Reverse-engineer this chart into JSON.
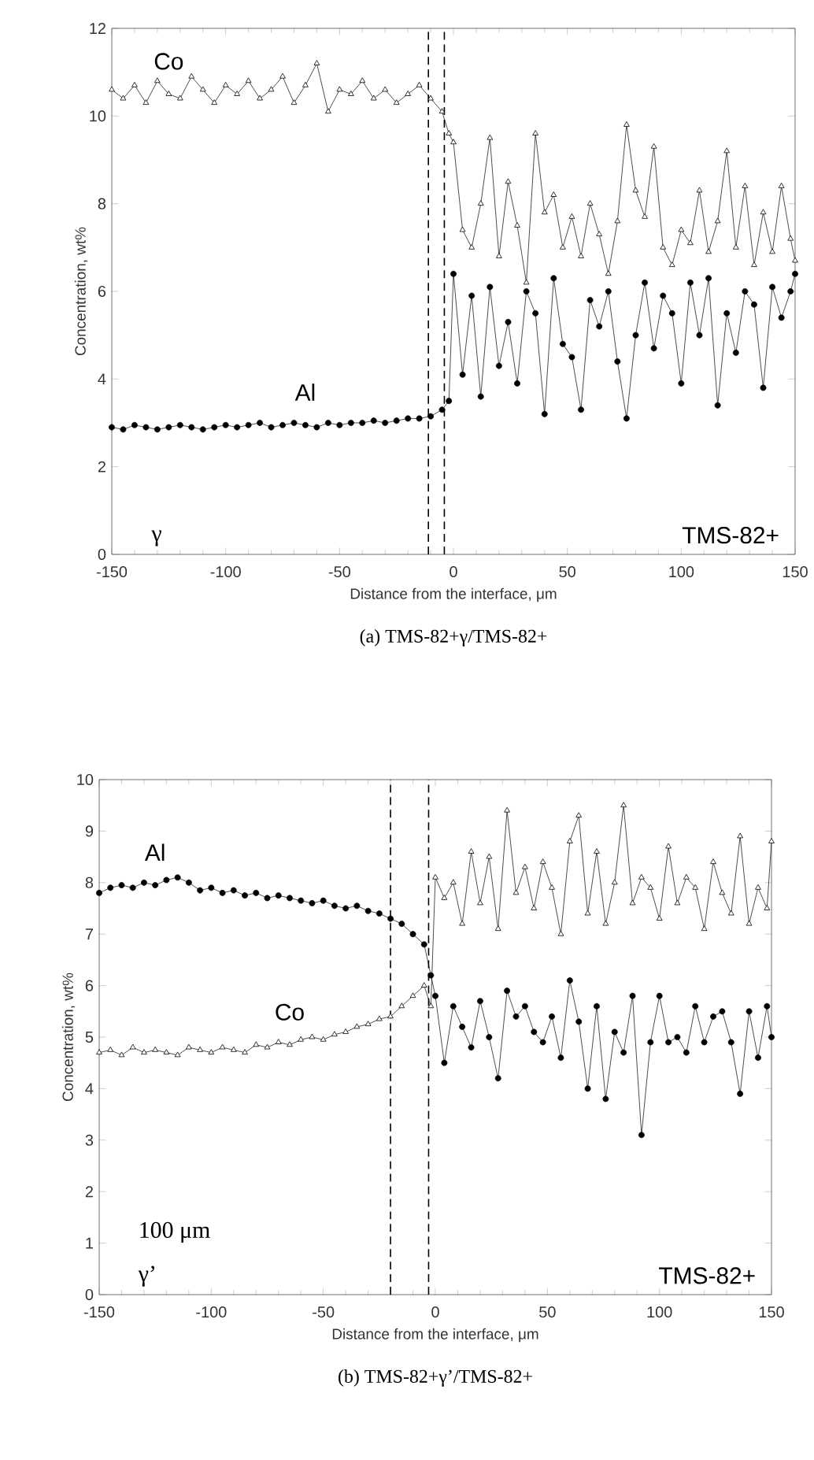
{
  "chart_data": [
    {
      "type": "line",
      "title": "(a) TMS-82+γ/TMS-82+",
      "xlabel": "Distance from the interface, μm",
      "ylabel": "Concentration, wt%",
      "x": [
        -150,
        -145,
        -140,
        -135,
        -130,
        -125,
        -120,
        -115,
        -110,
        -105,
        -100,
        -95,
        -90,
        -85,
        -80,
        -75,
        -70,
        -65,
        -60,
        -55,
        -50,
        -45,
        -40,
        -35,
        -30,
        -25,
        -20,
        -15,
        -10,
        -5,
        -2,
        0,
        4,
        8,
        12,
        16,
        20,
        24,
        28,
        32,
        36,
        40,
        44,
        48,
        52,
        56,
        60,
        64,
        68,
        72,
        76,
        80,
        84,
        88,
        92,
        96,
        100,
        104,
        108,
        112,
        116,
        120,
        124,
        128,
        132,
        136,
        140,
        144,
        148,
        150
      ],
      "series": [
        {
          "name": "Co",
          "color": "#000000",
          "marker": "triangle",
          "values": [
            10.6,
            10.4,
            10.7,
            10.3,
            10.8,
            10.5,
            10.4,
            10.9,
            10.6,
            10.3,
            10.7,
            10.5,
            10.8,
            10.4,
            10.6,
            10.9,
            10.3,
            10.7,
            11.2,
            10.1,
            10.6,
            10.5,
            10.8,
            10.4,
            10.6,
            10.3,
            10.5,
            10.7,
            10.4,
            10.1,
            9.6,
            9.4,
            7.4,
            7.0,
            8.0,
            9.5,
            6.8,
            8.5,
            7.5,
            6.2,
            9.6,
            7.8,
            8.2,
            7.0,
            7.7,
            6.8,
            8.0,
            7.3,
            6.4,
            7.6,
            9.8,
            8.3,
            7.7,
            9.3,
            7.0,
            6.6,
            7.4,
            7.1,
            8.3,
            6.9,
            7.6,
            9.2,
            7.0,
            8.4,
            6.6,
            7.8,
            6.9,
            8.4,
            7.2,
            6.7
          ]
        },
        {
          "name": "Al",
          "color": "#000000",
          "marker": "circle",
          "values": [
            2.9,
            2.85,
            2.95,
            2.9,
            2.85,
            2.9,
            2.95,
            2.9,
            2.85,
            2.9,
            2.95,
            2.9,
            2.95,
            3.0,
            2.9,
            2.95,
            3.0,
            2.95,
            2.9,
            3.0,
            2.95,
            3.0,
            3.0,
            3.05,
            3.0,
            3.05,
            3.1,
            3.1,
            3.15,
            3.3,
            3.5,
            6.4,
            4.1,
            5.9,
            3.6,
            6.1,
            4.3,
            5.3,
            3.9,
            6.0,
            5.5,
            3.2,
            6.3,
            4.8,
            4.5,
            3.3,
            5.8,
            5.2,
            6.0,
            4.4,
            3.1,
            5.0,
            6.2,
            4.7,
            5.9,
            5.5,
            3.9,
            6.2,
            5.0,
            6.3,
            3.4,
            5.5,
            4.6,
            6.0,
            5.7,
            3.8,
            6.1,
            5.4,
            6.0,
            6.4
          ]
        }
      ],
      "xlim": [
        -150,
        150
      ],
      "ylim": [
        0,
        12
      ],
      "xticks": [
        -150,
        -100,
        -50,
        0,
        50,
        100,
        150
      ],
      "yticks": [
        0,
        2,
        4,
        6,
        8,
        10,
        12
      ],
      "ref_lines": [
        {
          "axis": "x",
          "value": -11,
          "line_style": "dashed"
        },
        {
          "axis": "x",
          "value": -4,
          "line_style": "dashed"
        }
      ],
      "annotations": [
        "γ",
        "TMS-82+"
      ]
    },
    {
      "type": "line",
      "title": "(b) TMS-82+γ’/TMS-82+",
      "xlabel": "Distance from the interface, μm",
      "ylabel": "Concentration, wt%",
      "x": [
        -150,
        -145,
        -140,
        -135,
        -130,
        -125,
        -120,
        -115,
        -110,
        -105,
        -100,
        -95,
        -90,
        -85,
        -80,
        -75,
        -70,
        -65,
        -60,
        -55,
        -50,
        -45,
        -40,
        -35,
        -30,
        -25,
        -20,
        -15,
        -10,
        -5,
        -2,
        0,
        4,
        8,
        12,
        16,
        20,
        24,
        28,
        32,
        36,
        40,
        44,
        48,
        52,
        56,
        60,
        64,
        68,
        72,
        76,
        80,
        84,
        88,
        92,
        96,
        100,
        104,
        108,
        112,
        116,
        120,
        124,
        128,
        132,
        136,
        140,
        144,
        148,
        150
      ],
      "series": [
        {
          "name": "Al",
          "color": "#000000",
          "marker": "circle",
          "values": [
            7.8,
            7.9,
            7.95,
            7.9,
            8.0,
            7.95,
            8.05,
            8.1,
            8.0,
            7.85,
            7.9,
            7.8,
            7.85,
            7.75,
            7.8,
            7.7,
            7.75,
            7.7,
            7.65,
            7.6,
            7.65,
            7.55,
            7.5,
            7.55,
            7.45,
            7.4,
            7.3,
            7.2,
            7.0,
            6.8,
            6.2,
            5.8,
            4.5,
            5.6,
            5.2,
            4.8,
            5.7,
            5.0,
            4.2,
            5.9,
            5.4,
            5.6,
            5.1,
            4.9,
            5.4,
            4.6,
            6.1,
            5.3,
            4.0,
            5.6,
            3.8,
            5.1,
            4.7,
            5.8,
            3.1,
            4.9,
            5.8,
            4.9,
            5.0,
            4.7,
            5.6,
            4.9,
            5.4,
            5.5,
            4.9,
            3.9,
            5.5,
            4.6,
            5.6,
            5.0
          ]
        },
        {
          "name": "Co",
          "color": "#000000",
          "marker": "triangle",
          "values": [
            4.7,
            4.75,
            4.65,
            4.8,
            4.7,
            4.75,
            4.7,
            4.65,
            4.8,
            4.75,
            4.7,
            4.8,
            4.75,
            4.7,
            4.85,
            4.8,
            4.9,
            4.85,
            4.95,
            5.0,
            4.95,
            5.05,
            5.1,
            5.2,
            5.25,
            5.35,
            5.4,
            5.6,
            5.8,
            6.0,
            5.6,
            8.1,
            7.7,
            8.0,
            7.2,
            8.6,
            7.6,
            8.5,
            7.1,
            9.4,
            7.8,
            8.3,
            7.5,
            8.4,
            7.9,
            7.0,
            8.8,
            9.3,
            7.4,
            8.6,
            7.2,
            8.0,
            9.5,
            7.6,
            8.1,
            7.9,
            7.3,
            8.7,
            7.6,
            8.1,
            7.9,
            7.1,
            8.4,
            7.8,
            7.4,
            8.9,
            7.2,
            7.9,
            7.5,
            8.8
          ]
        }
      ],
      "xlim": [
        -150,
        150
      ],
      "ylim": [
        0,
        10
      ],
      "xticks": [
        -150,
        -100,
        -50,
        0,
        50,
        100,
        150
      ],
      "yticks": [
        0,
        1,
        2,
        3,
        4,
        5,
        6,
        7,
        8,
        9,
        10
      ],
      "ref_lines": [
        {
          "axis": "x",
          "value": -20,
          "line_style": "dashed"
        },
        {
          "axis": "x",
          "value": -3,
          "line_style": "dashed"
        }
      ],
      "annotations": [
        "100 μm",
        "γ’",
        "TMS-82+"
      ]
    }
  ]
}
